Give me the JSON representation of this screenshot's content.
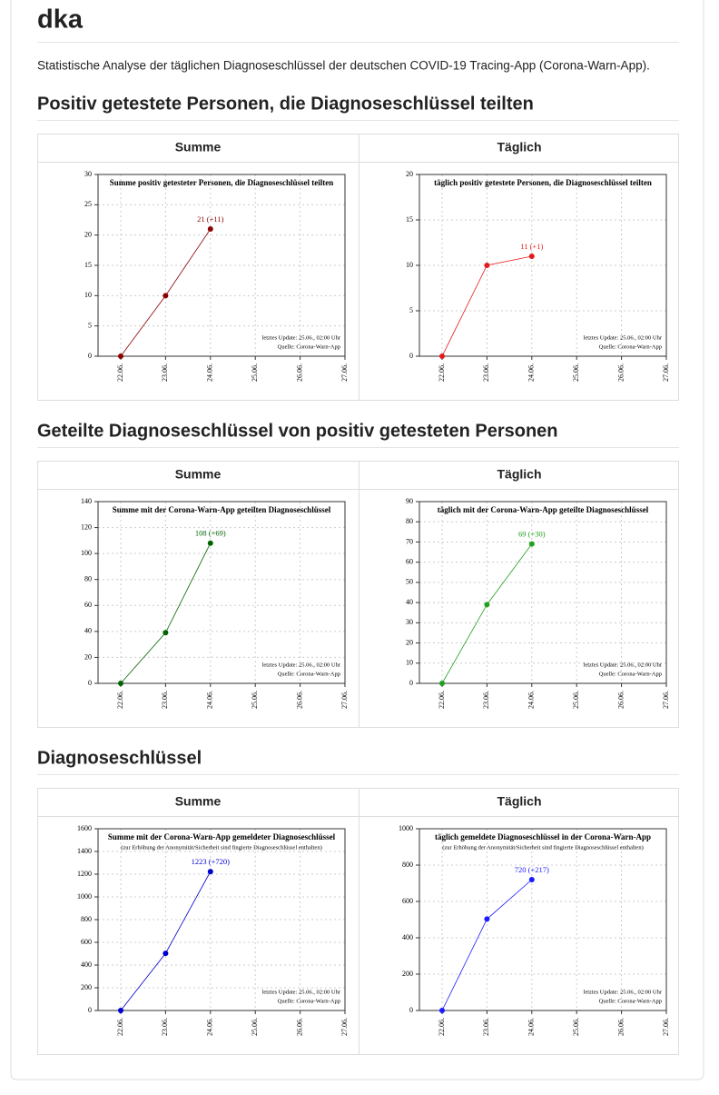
{
  "title": "dka",
  "intro": "Statistische Analyse der täglichen Diagnoseschlüssel der deutschen COVID-19 Tracing-App (Corona-Warn-App).",
  "sections": [
    {
      "title": "Positiv getestete Personen, die Diagnoseschlüssel teilten",
      "charts": [
        {
          "heading": "Summe",
          "type": "line",
          "title": "Summe positiv getesteter Personen, die Diagnoseschlüssel teilten",
          "categories": [
            "22.06.",
            "23.06.",
            "24.06.",
            "25.06.",
            "26.06.",
            "27.06."
          ],
          "values": [
            0,
            10,
            21,
            null,
            null,
            null
          ],
          "value_labels": [
            null,
            null,
            "21 (+11)",
            null,
            null,
            null
          ],
          "color": "#8b0000",
          "ylim": [
            0,
            30
          ],
          "yticks": [
            0,
            5,
            10,
            15,
            20,
            25,
            30
          ],
          "grid": true,
          "notes": [
            "letztes Update: 25.06., 02:00 Uhr",
            "Quelle: Corona-Warn-App"
          ]
        },
        {
          "heading": "Täglich",
          "type": "line",
          "title": "täglich positiv getestete Personen, die Diagnoseschlüssel teilten",
          "categories": [
            "22.06.",
            "23.06.",
            "24.06.",
            "25.06.",
            "26.06.",
            "27.06."
          ],
          "values": [
            0,
            10,
            11,
            null,
            null,
            null
          ],
          "value_labels": [
            null,
            null,
            "11 (+1)",
            null,
            null,
            null
          ],
          "color": "#e31a1c",
          "ylim": [
            0,
            20
          ],
          "yticks": [
            0,
            5,
            10,
            15,
            20
          ],
          "grid": true,
          "notes": [
            "letztes Update: 25.06., 02:00 Uhr",
            "Quelle: Corona-Warn-App"
          ]
        }
      ]
    },
    {
      "title": "Geteilte Diagnoseschlüssel von positiv getesteten Personen",
      "charts": [
        {
          "heading": "Summe",
          "type": "line",
          "title": "Summe mit der Corona-Warn-App geteilten Diagnoseschlüssel",
          "categories": [
            "22.06.",
            "23.06.",
            "24.06.",
            "25.06.",
            "26.06.",
            "27.06."
          ],
          "values": [
            0,
            39,
            108,
            null,
            null,
            null
          ],
          "value_labels": [
            null,
            null,
            "108 (+69)",
            null,
            null,
            null
          ],
          "color": "#006400",
          "ylim": [
            0,
            140
          ],
          "yticks": [
            0,
            20,
            40,
            60,
            80,
            100,
            120,
            140
          ],
          "grid": true,
          "notes": [
            "letztes Update: 25.06., 02:00 Uhr",
            "Quelle: Corona-Warn-App"
          ]
        },
        {
          "heading": "Täglich",
          "type": "line",
          "title": "täglich mit der Corona-Warn-App geteilte Diagnoseschlüssel",
          "categories": [
            "22.06.",
            "23.06.",
            "24.06.",
            "25.06.",
            "26.06.",
            "27.06."
          ],
          "values": [
            0,
            39,
            69,
            null,
            null,
            null
          ],
          "value_labels": [
            null,
            null,
            "69 (+30)",
            null,
            null,
            null
          ],
          "color": "#1fa01f",
          "ylim": [
            0,
            90
          ],
          "yticks": [
            0,
            10,
            20,
            30,
            40,
            50,
            60,
            70,
            80,
            90
          ],
          "grid": true,
          "notes": [
            "letztes Update: 25.06., 02:00 Uhr",
            "Quelle: Corona-Warn-App"
          ]
        }
      ]
    },
    {
      "title": "Diagnoseschlüssel",
      "charts": [
        {
          "heading": "Summe",
          "type": "line",
          "title": "Summe mit der Corona-Warn-App gemeldeter Diagnoseschlüssel",
          "subtitle": "(zur Erhöhung der Anonymität/Sicherheit sind fingierte Diagnoseschlüssel enthalten)",
          "categories": [
            "22.06.",
            "23.06.",
            "24.06.",
            "25.06.",
            "26.06.",
            "27.06."
          ],
          "values": [
            0,
            503,
            1223,
            null,
            null,
            null
          ],
          "value_labels": [
            null,
            null,
            "1223 (+720)",
            null,
            null,
            null
          ],
          "color": "#0000cd",
          "ylim": [
            0,
            1600
          ],
          "yticks": [
            0,
            200,
            400,
            600,
            800,
            1000,
            1200,
            1400,
            1600
          ],
          "grid": true,
          "notes": [
            "letztes Update: 25.06., 02:00 Uhr",
            "Quelle: Corona-Warn-App"
          ]
        },
        {
          "heading": "Täglich",
          "type": "line",
          "title": "täglich gemeldete Diagnoseschlüssel in der Corona-Warn-App",
          "subtitle": "(zur Erhöhung der Anonymität/Sicherheit sind fingierte Diagnoseschlüssel enthalten)",
          "categories": [
            "22.06.",
            "23.06.",
            "24.06.",
            "25.06.",
            "26.06.",
            "27.06."
          ],
          "values": [
            0,
            503,
            720,
            null,
            null,
            null
          ],
          "value_labels": [
            null,
            null,
            "720 (+217)",
            null,
            null,
            null
          ],
          "color": "#1a1aff",
          "ylim": [
            0,
            1000
          ],
          "yticks": [
            0,
            200,
            400,
            600,
            800,
            1000
          ],
          "grid": true,
          "notes": [
            "letztes Update: 25.06., 02:00 Uhr",
            "Quelle: Corona-Warn-App"
          ]
        }
      ]
    }
  ]
}
